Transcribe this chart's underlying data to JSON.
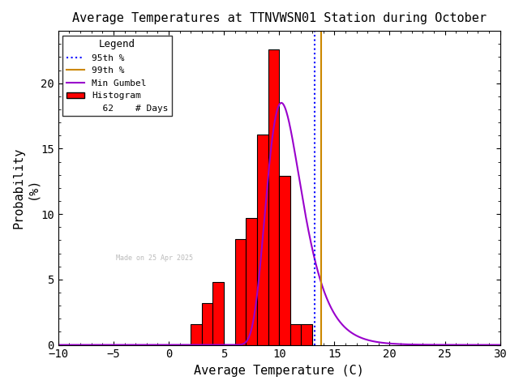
{
  "title": "Average Temperatures at TTNVWSN01 Station during October",
  "xlabel": "Average Temperature (C)",
  "ylabel": "Probability\n(%)",
  "xlim": [
    -10,
    30
  ],
  "ylim": [
    0,
    24
  ],
  "yticks": [
    0,
    5,
    10,
    15,
    20
  ],
  "xticks": [
    -10,
    -5,
    0,
    5,
    10,
    15,
    20,
    25,
    30
  ],
  "bar_left_edges": [
    2,
    3,
    4,
    5,
    6,
    7,
    8,
    9,
    10,
    11,
    12,
    13,
    14
  ],
  "bar_heights": [
    1.6,
    3.2,
    4.8,
    0.0,
    8.1,
    9.7,
    16.1,
    22.6,
    12.9,
    1.6,
    1.6,
    0.0,
    0.0
  ],
  "bar_color": "#ff0000",
  "bar_edgecolor": "#000000",
  "gumbel_color": "#9900cc",
  "p95_color": "#0000ff",
  "p99_color": "#cc8800",
  "p95_value": 13.2,
  "p99_value": 13.8,
  "n_days": 62,
  "date_label": "Made on 25 Apr 2025",
  "legend_title": "Legend",
  "bg_color": "#ffffff",
  "gumbel_mu": 10.2,
  "gumbel_beta": 1.6,
  "gumbel_scale": 100.0
}
